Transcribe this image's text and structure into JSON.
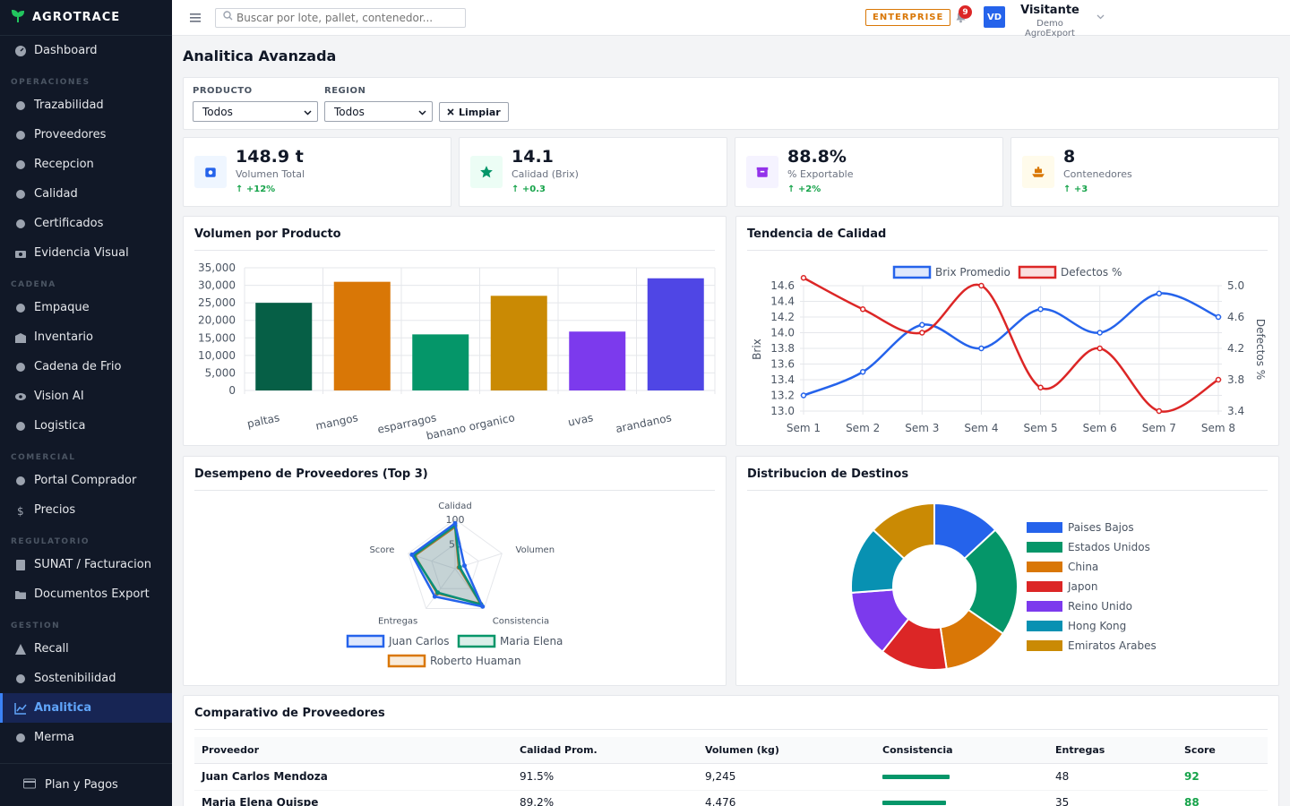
{
  "app": {
    "brand": "AGROTRACE"
  },
  "sidebar": {
    "top": {
      "label": "Dashboard",
      "icon": "gauge-icon"
    },
    "sections": [
      {
        "title": "OPERACIONES",
        "items": [
          "Trazabilidad",
          "Proveedores",
          "Recepcion",
          "Calidad",
          "Certificados",
          "Evidencia Visual"
        ]
      },
      {
        "title": "CADENA",
        "items": [
          "Empaque",
          "Inventario",
          "Cadena de Frio",
          "Vision AI",
          "Logistica"
        ]
      },
      {
        "title": "COMERCIAL",
        "items": [
          "Portal Comprador",
          "Precios"
        ]
      },
      {
        "title": "REGULATORIO",
        "items": [
          "SUNAT / Facturacion",
          "Documentos Export"
        ]
      },
      {
        "title": "GESTION",
        "items": [
          "Recall",
          "Sostenibilidad",
          "Analitica",
          "Merma"
        ]
      }
    ],
    "active": "Analitica",
    "footer": "Plan y Pagos"
  },
  "topbar": {
    "search_placeholder": "Buscar por lote, pallet, contenedor...",
    "plan_badge": "ENTERPRISE",
    "notifications": "9",
    "avatar_initials": "VD",
    "user_name": "Visitante",
    "user_org": "Demo AgroExport"
  },
  "page": {
    "title": "Analitica Avanzada"
  },
  "filters": {
    "product_label": "PRODUCTO",
    "product_value": "Todos",
    "region_label": "REGION",
    "region_value": "Todos",
    "clear_label": "Limpiar"
  },
  "kpis": [
    {
      "value": "148.9 t",
      "label": "Volumen Total",
      "delta": "+12%",
      "icon": "scale-icon",
      "color": "#2563eb",
      "bg": "#eff6ff"
    },
    {
      "value": "14.1",
      "label": "Calidad (Brix)",
      "delta": "+0.3",
      "icon": "star-icon",
      "color": "#059669",
      "bg": "#ecfdf5"
    },
    {
      "value": "88.8%",
      "label": "% Exportable",
      "delta": "+2%",
      "icon": "box-icon",
      "color": "#9333ea",
      "bg": "#f5f3ff"
    },
    {
      "value": "8",
      "label": "Contenedores",
      "delta": "+3",
      "icon": "ship-icon",
      "color": "#d97706",
      "bg": "#fffbeb"
    }
  ],
  "chart_titles": {
    "volume": "Volumen por Producto",
    "quality": "Tendencia de Calidad",
    "suppliers": "Desempeno de Proveedores (Top 3)",
    "destinations": "Distribucion de Destinos"
  },
  "chart_data": [
    {
      "type": "bar",
      "categories": [
        "paltas",
        "mangos",
        "esparragos",
        "banano organico",
        "uvas",
        "arandanos"
      ],
      "values": [
        25000,
        31000,
        16000,
        27000,
        16800,
        32000
      ],
      "colors": [
        "#065f46",
        "#d97706",
        "#059669",
        "#ca8a04",
        "#7c3aed",
        "#4f46e5"
      ],
      "ylim": [
        0,
        35000
      ],
      "yticks": [
        "0",
        "5,000",
        "10,000",
        "15,000",
        "20,000",
        "25,000",
        "30,000",
        "35,000"
      ],
      "grid": true
    },
    {
      "type": "line",
      "x": [
        "Sem 1",
        "Sem 2",
        "Sem 3",
        "Sem 4",
        "Sem 5",
        "Sem 6",
        "Sem 7",
        "Sem 8"
      ],
      "series": [
        {
          "name": "Brix Promedio",
          "axis": "left",
          "color": "#2563eb",
          "values": [
            13.2,
            13.5,
            14.1,
            13.8,
            14.3,
            14.0,
            14.5,
            14.2
          ]
        },
        {
          "name": "Defectos %",
          "axis": "right",
          "color": "#dc2626",
          "values": [
            5.1,
            4.7,
            4.4,
            5.0,
            3.7,
            4.2,
            3.4,
            3.8
          ]
        }
      ],
      "ylabel": "Brix",
      "y2label": "Defectos %",
      "ylim": [
        13.0,
        14.6
      ],
      "y2lim": [
        3.4,
        5.0
      ],
      "yticks": [
        "13.0",
        "13.2",
        "13.4",
        "13.6",
        "13.8",
        "14.0",
        "14.2",
        "14.4",
        "14.6"
      ],
      "y2ticks": [
        "3.4",
        "3.8",
        "4.2",
        "4.6",
        "5.0"
      ],
      "legend": "top",
      "grid": true
    },
    {
      "type": "radar",
      "axes": [
        "Calidad",
        "Volumen",
        "Consistencia",
        "Entregas",
        "Score"
      ],
      "rlim": [
        0,
        100
      ],
      "rticks": [
        "50",
        "100"
      ],
      "series": [
        {
          "name": "Juan Carlos",
          "color": "#2563eb",
          "values": [
            92,
            20,
            95,
            70,
            92
          ]
        },
        {
          "name": "Maria Elena",
          "color": "#059669",
          "values": [
            88,
            10,
            90,
            60,
            88
          ]
        },
        {
          "name": "Roberto Huaman",
          "color": "#d97706",
          "values": [
            85,
            8,
            88,
            62,
            86
          ]
        }
      ],
      "legend": "bottom"
    },
    {
      "type": "pie",
      "donut": true,
      "labels": [
        "Paises Bajos",
        "Estados Unidos",
        "China",
        "Japon",
        "Reino Unido",
        "Hong Kong",
        "Emiratos Arabes"
      ],
      "values": [
        12.5,
        20.5,
        12.5,
        12.5,
        12.5,
        12.5,
        12.5
      ],
      "colors": [
        "#2563eb",
        "#059669",
        "#d97706",
        "#dc2626",
        "#7c3aed",
        "#0891b2",
        "#ca8a04"
      ],
      "legend": "right"
    }
  ],
  "table": {
    "title": "Comparativo de Proveedores",
    "columns": [
      "Proveedor",
      "Calidad Prom.",
      "Volumen (kg)",
      "Consistencia",
      "Entregas",
      "Score"
    ],
    "rows": [
      {
        "name": "Juan Carlos Mendoza",
        "quality": "91.5%",
        "volume": "9,245",
        "consistency": 0.95,
        "deliveries": "48",
        "score": "92"
      },
      {
        "name": "Maria Elena Quispe",
        "quality": "89.2%",
        "volume": "4,476",
        "consistency": 0.9,
        "deliveries": "35",
        "score": "88"
      }
    ]
  }
}
